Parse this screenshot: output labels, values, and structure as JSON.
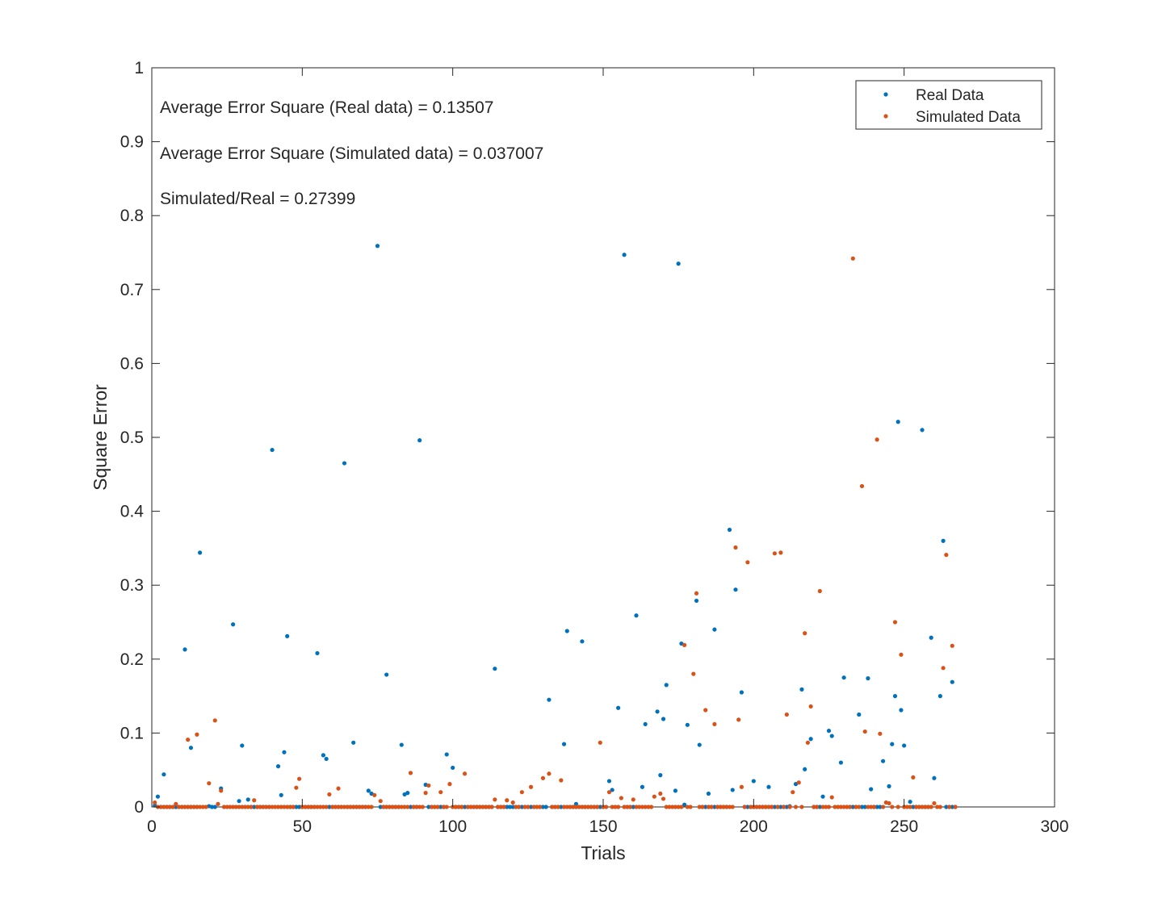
{
  "chart_data": {
    "type": "scatter",
    "title": "",
    "xlabel": "Trials",
    "ylabel": "Square Error",
    "xlim": [
      0,
      300
    ],
    "ylim": [
      0,
      1
    ],
    "xticks": [
      0,
      50,
      100,
      150,
      200,
      250,
      300
    ],
    "yticks": [
      0,
      0.1,
      0.2,
      0.3,
      0.4,
      0.5,
      0.6,
      0.7,
      0.8,
      0.9,
      1
    ],
    "xtick_labels": [
      "0",
      "50",
      "100",
      "150",
      "200",
      "250",
      "300"
    ],
    "ytick_labels": [
      "0",
      "0.1",
      "0.2",
      "0.3",
      "0.4",
      "0.5",
      "0.6",
      "0.7",
      "0.8",
      "0.9",
      "1"
    ],
    "grid": false,
    "legend": {
      "position": "top-right",
      "entries": [
        "Real Data",
        "Simulated Data"
      ]
    },
    "annotations": [
      "Average Error Square (Real data) = 0.13507",
      "Average Error Square (Simulated data) = 0.037007",
      "Simulated/Real = 0.27399"
    ],
    "series": [
      {
        "name": "Real Data",
        "color": "#0072BD",
        "points": [
          [
            1,
            0.002
          ],
          [
            2,
            0.014
          ],
          [
            4,
            0.044
          ],
          [
            11,
            0.213
          ],
          [
            13,
            0.08
          ],
          [
            16,
            0.344
          ],
          [
            19,
            0.001
          ],
          [
            23,
            0.025
          ],
          [
            27,
            0.247
          ],
          [
            29,
            0.008
          ],
          [
            30,
            0.083
          ],
          [
            32,
            0.01
          ],
          [
            40,
            0.483
          ],
          [
            42,
            0.055
          ],
          [
            43,
            0.016
          ],
          [
            44,
            0.074
          ],
          [
            45,
            0.231
          ],
          [
            55,
            0.208
          ],
          [
            57,
            0.07
          ],
          [
            58,
            0.065
          ],
          [
            64,
            0.465
          ],
          [
            67,
            0.087
          ],
          [
            72,
            0.022
          ],
          [
            73,
            0.018
          ],
          [
            75,
            0.759
          ],
          [
            78,
            0.179
          ],
          [
            83,
            0.084
          ],
          [
            84,
            0.017
          ],
          [
            85,
            0.019
          ],
          [
            89,
            0.496
          ],
          [
            91,
            0.03
          ],
          [
            98,
            0.071
          ],
          [
            100,
            0.053
          ],
          [
            114,
            0.187
          ],
          [
            132,
            0.145
          ],
          [
            137,
            0.085
          ],
          [
            138,
            0.238
          ],
          [
            141,
            0.004
          ],
          [
            143,
            0.224
          ],
          [
            152,
            0.035
          ],
          [
            153,
            0.023
          ],
          [
            155,
            0.134
          ],
          [
            157,
            0.747
          ],
          [
            161,
            0.259
          ],
          [
            163,
            0.027
          ],
          [
            164,
            0.112
          ],
          [
            168,
            0.129
          ],
          [
            169,
            0.043
          ],
          [
            170,
            0.119
          ],
          [
            171,
            0.165
          ],
          [
            174,
            0.022
          ],
          [
            175,
            0.735
          ],
          [
            176,
            0.221
          ],
          [
            177,
            0.003
          ],
          [
            178,
            0.111
          ],
          [
            181,
            0.279
          ],
          [
            182,
            0.084
          ],
          [
            185,
            0.018
          ],
          [
            187,
            0.24
          ],
          [
            192,
            0.375
          ],
          [
            193,
            0.023
          ],
          [
            194,
            0.294
          ],
          [
            196,
            0.155
          ],
          [
            200,
            0.035
          ],
          [
            205,
            0.027
          ],
          [
            212,
            0.001
          ],
          [
            214,
            0.031
          ],
          [
            216,
            0.159
          ],
          [
            217,
            0.051
          ],
          [
            219,
            0.092
          ],
          [
            223,
            0.014
          ],
          [
            225,
            0.103
          ],
          [
            226,
            0.096
          ],
          [
            229,
            0.06
          ],
          [
            230,
            0.175
          ],
          [
            235,
            0.125
          ],
          [
            238,
            0.174
          ],
          [
            239,
            0.024
          ],
          [
            243,
            0.062
          ],
          [
            245,
            0.028
          ],
          [
            246,
            0.085
          ],
          [
            247,
            0.15
          ],
          [
            248,
            0.521
          ],
          [
            249,
            0.131
          ],
          [
            250,
            0.083
          ],
          [
            252,
            0.007
          ],
          [
            256,
            0.51
          ],
          [
            259,
            0.229
          ],
          [
            260,
            0.039
          ],
          [
            262,
            0.15
          ],
          [
            263,
            0.36
          ],
          [
            266,
            0.169
          ]
        ],
        "zeros": [
          [
            3,
            15
          ],
          [
            20,
            21
          ],
          [
            33,
            39
          ],
          [
            46,
            54
          ],
          [
            59,
            63
          ],
          [
            65,
            71
          ],
          [
            76,
            82
          ],
          [
            86,
            88
          ],
          [
            92,
            97
          ],
          [
            101,
            113
          ],
          [
            115,
            131
          ],
          [
            133,
            136
          ],
          [
            139,
            150
          ],
          [
            158,
            160
          ],
          [
            183,
            191
          ],
          [
            197,
            211
          ],
          [
            220,
            222
          ],
          [
            231,
            234
          ],
          [
            236,
            237
          ],
          [
            240,
            242
          ],
          [
            253,
            258
          ],
          [
            264,
            267
          ]
        ]
      },
      {
        "name": "Simulated Data",
        "color": "#D95319",
        "points": [
          [
            1,
            0.006
          ],
          [
            8,
            0.004
          ],
          [
            12,
            0.091
          ],
          [
            15,
            0.098
          ],
          [
            19,
            0.032
          ],
          [
            21,
            0.117
          ],
          [
            22,
            0.004
          ],
          [
            23,
            0.022
          ],
          [
            34,
            0.009
          ],
          [
            48,
            0.026
          ],
          [
            49,
            0.038
          ],
          [
            59,
            0.017
          ],
          [
            62,
            0.025
          ],
          [
            74,
            0.016
          ],
          [
            76,
            0.008
          ],
          [
            86,
            0.046
          ],
          [
            91,
            0.019
          ],
          [
            92,
            0.029
          ],
          [
            96,
            0.02
          ],
          [
            99,
            0.031
          ],
          [
            104,
            0.045
          ],
          [
            114,
            0.01
          ],
          [
            118,
            0.009
          ],
          [
            120,
            0.006
          ],
          [
            123,
            0.02
          ],
          [
            126,
            0.027
          ],
          [
            130,
            0.039
          ],
          [
            132,
            0.045
          ],
          [
            136,
            0.036
          ],
          [
            149,
            0.087
          ],
          [
            152,
            0.02
          ],
          [
            156,
            0.012
          ],
          [
            160,
            0.01
          ],
          [
            167,
            0.014
          ],
          [
            169,
            0.018
          ],
          [
            170,
            0.011
          ],
          [
            177,
            0.219
          ],
          [
            180,
            0.18
          ],
          [
            181,
            0.289
          ],
          [
            184,
            0.131
          ],
          [
            187,
            0.112
          ],
          [
            194,
            0.351
          ],
          [
            195,
            0.118
          ],
          [
            196,
            0.027
          ],
          [
            198,
            0.331
          ],
          [
            207,
            0.343
          ],
          [
            209,
            0.344
          ],
          [
            211,
            0.125
          ],
          [
            213,
            0.02
          ],
          [
            215,
            0.033
          ],
          [
            217,
            0.235
          ],
          [
            218,
            0.087
          ],
          [
            219,
            0.136
          ],
          [
            222,
            0.292
          ],
          [
            226,
            0.013
          ],
          [
            233,
            0.742
          ],
          [
            236,
            0.434
          ],
          [
            237,
            0.102
          ],
          [
            241,
            0.497
          ],
          [
            242,
            0.099
          ],
          [
            244,
            0.006
          ],
          [
            245,
            0.005
          ],
          [
            247,
            0.25
          ],
          [
            249,
            0.206
          ],
          [
            253,
            0.04
          ],
          [
            260,
            0.005
          ],
          [
            263,
            0.188
          ],
          [
            264,
            0.341
          ],
          [
            266,
            0.218
          ]
        ],
        "zeros": [
          [
            2,
            7
          ],
          [
            9,
            18
          ],
          [
            24,
            33
          ],
          [
            35,
            47
          ],
          [
            50,
            58
          ],
          [
            60,
            73
          ],
          [
            77,
            85
          ],
          [
            87,
            90
          ],
          [
            93,
            95
          ],
          [
            97,
            98
          ],
          [
            100,
            103
          ],
          [
            105,
            113
          ],
          [
            115,
            117
          ],
          [
            121,
            122
          ],
          [
            124,
            125
          ],
          [
            127,
            129
          ],
          [
            133,
            135
          ],
          [
            137,
            148
          ],
          [
            150,
            151
          ],
          [
            153,
            155
          ],
          [
            157,
            159
          ],
          [
            161,
            166
          ],
          [
            171,
            176
          ],
          [
            178,
            179
          ],
          [
            182,
            183
          ],
          [
            185,
            186
          ],
          [
            188,
            193
          ],
          [
            197,
            197
          ],
          [
            199,
            206
          ],
          [
            208,
            208
          ],
          [
            210,
            210
          ],
          [
            212,
            212
          ],
          [
            214,
            214
          ],
          [
            216,
            216
          ],
          [
            220,
            221
          ],
          [
            223,
            225
          ],
          [
            227,
            232
          ],
          [
            234,
            235
          ],
          [
            238,
            240
          ],
          [
            243,
            243
          ],
          [
            246,
            246
          ],
          [
            248,
            248
          ],
          [
            250,
            252
          ],
          [
            254,
            259
          ],
          [
            261,
            262
          ],
          [
            265,
            265
          ],
          [
            267,
            267
          ]
        ]
      }
    ]
  }
}
